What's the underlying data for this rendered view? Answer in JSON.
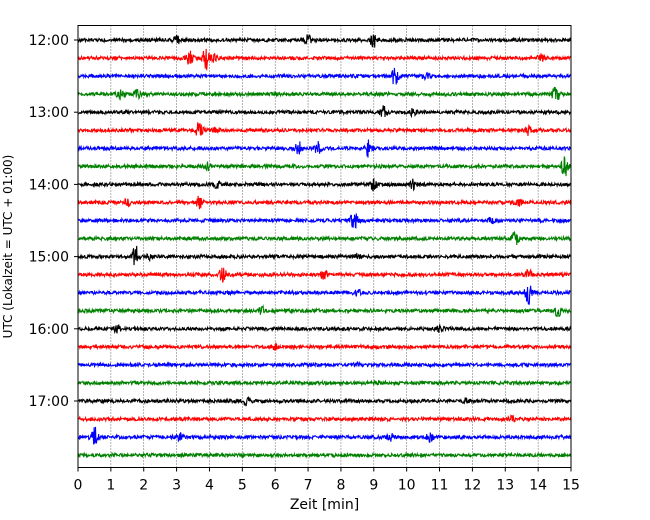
{
  "chart_data": {
    "type": "line",
    "title": "",
    "xlabel": "Zeit  [min]",
    "ylabel": "UTC (Lokalzeit = UTC + 01:00)",
    "xlim": [
      0,
      15
    ],
    "x_ticks": [
      "0",
      "1",
      "2",
      "3",
      "4",
      "5",
      "6",
      "7",
      "8",
      "9",
      "10",
      "11",
      "12",
      "13",
      "14",
      "15"
    ],
    "y_tick_labels": [
      "12:00",
      "13:00",
      "14:00",
      "15:00",
      "16:00",
      "17:00"
    ],
    "grid": "vertical dotted lines at each minute",
    "legend": "none",
    "color_cycle": [
      "#000000",
      "#ff0000",
      "#0000ff",
      "#008000"
    ],
    "row_interval_minutes": 15,
    "traces": [
      {
        "start": "12:00",
        "color": "#000000",
        "events": [
          [
            3.0,
            0.35
          ],
          [
            7.0,
            0.4
          ],
          [
            9.0,
            0.8
          ]
        ]
      },
      {
        "start": "12:15",
        "color": "#ff0000",
        "events": [
          [
            3.4,
            0.55
          ],
          [
            3.9,
            1.0
          ],
          [
            4.1,
            0.4
          ],
          [
            14.1,
            0.35
          ]
        ]
      },
      {
        "start": "12:30",
        "color": "#0000ff",
        "events": [
          [
            9.65,
            0.9
          ],
          [
            10.6,
            0.25
          ]
        ]
      },
      {
        "start": "12:45",
        "color": "#008000",
        "events": [
          [
            1.3,
            0.7
          ],
          [
            1.8,
            0.45
          ],
          [
            14.55,
            1.0
          ]
        ]
      },
      {
        "start": "13:00",
        "color": "#000000",
        "events": [
          [
            9.3,
            0.5
          ],
          [
            10.2,
            0.3
          ]
        ]
      },
      {
        "start": "13:15",
        "color": "#ff0000",
        "events": [
          [
            3.7,
            0.9
          ],
          [
            4.2,
            0.35
          ],
          [
            13.7,
            0.4
          ]
        ]
      },
      {
        "start": "13:30",
        "color": "#0000ff",
        "events": [
          [
            6.7,
            0.6
          ],
          [
            7.3,
            0.5
          ],
          [
            8.85,
            0.8
          ]
        ]
      },
      {
        "start": "13:45",
        "color": "#008000",
        "events": [
          [
            3.95,
            0.35
          ],
          [
            14.8,
            1.0
          ]
        ]
      },
      {
        "start": "14:00",
        "color": "#000000",
        "events": [
          [
            4.2,
            0.3
          ],
          [
            9.0,
            0.6
          ],
          [
            10.2,
            0.4
          ]
        ]
      },
      {
        "start": "14:15",
        "color": "#ff0000",
        "events": [
          [
            1.5,
            0.35
          ],
          [
            3.7,
            0.6
          ],
          [
            13.4,
            0.3
          ]
        ]
      },
      {
        "start": "14:30",
        "color": "#0000ff",
        "events": [
          [
            8.4,
            0.85
          ],
          [
            12.6,
            0.3
          ]
        ]
      },
      {
        "start": "14:45",
        "color": "#008000",
        "events": [
          [
            13.3,
            0.6
          ]
        ]
      },
      {
        "start": "15:00",
        "color": "#000000",
        "events": [
          [
            1.75,
            1.0
          ],
          [
            2.2,
            0.3
          ],
          [
            8.5,
            0.3
          ]
        ]
      },
      {
        "start": "15:15",
        "color": "#ff0000",
        "events": [
          [
            4.4,
            0.7
          ],
          [
            7.5,
            0.45
          ],
          [
            13.7,
            0.5
          ]
        ]
      },
      {
        "start": "15:30",
        "color": "#0000ff",
        "events": [
          [
            8.5,
            0.25
          ],
          [
            13.7,
            0.95
          ]
        ]
      },
      {
        "start": "15:45",
        "color": "#008000",
        "events": [
          [
            5.6,
            0.3
          ],
          [
            14.6,
            0.45
          ]
        ]
      },
      {
        "start": "16:00",
        "color": "#000000",
        "events": [
          [
            1.2,
            0.35
          ],
          [
            11.0,
            0.3
          ]
        ]
      },
      {
        "start": "16:15",
        "color": "#ff0000",
        "events": [
          [
            6.0,
            0.2
          ]
        ]
      },
      {
        "start": "16:30",
        "color": "#0000ff",
        "events": [
          [
            8.5,
            0.15
          ]
        ]
      },
      {
        "start": "16:45",
        "color": "#008000",
        "events": [
          [
            9.1,
            0.15
          ]
        ]
      },
      {
        "start": "17:00",
        "color": "#000000",
        "events": [
          [
            5.1,
            0.35
          ],
          [
            11.8,
            0.2
          ]
        ]
      },
      {
        "start": "17:15",
        "color": "#ff0000",
        "events": [
          [
            13.2,
            0.3
          ]
        ]
      },
      {
        "start": "17:30",
        "color": "#0000ff",
        "events": [
          [
            0.5,
            0.9
          ],
          [
            3.1,
            0.3
          ],
          [
            9.5,
            0.3
          ],
          [
            10.7,
            0.4
          ]
        ]
      },
      {
        "start": "17:45",
        "color": "#008000",
        "events": []
      }
    ]
  }
}
